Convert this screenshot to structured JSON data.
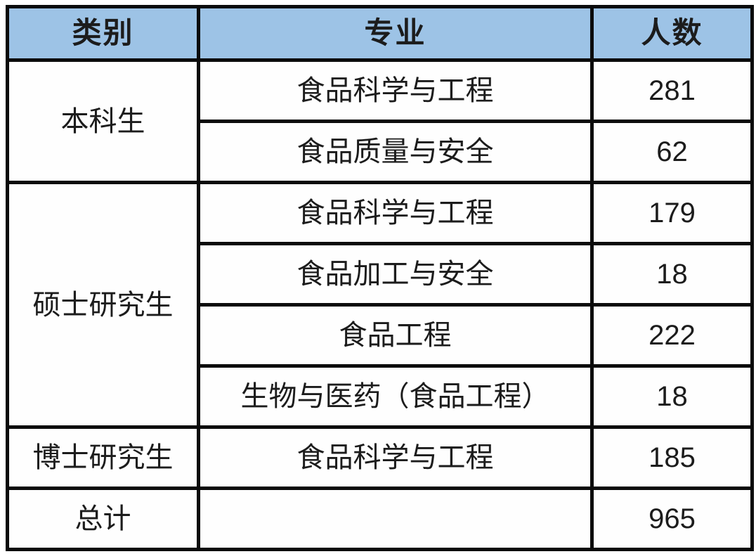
{
  "table": {
    "headers": {
      "category": "类别",
      "major": "专业",
      "count": "人数"
    },
    "groups": [
      {
        "category": "本科生",
        "rows": [
          {
            "major": "食品科学与工程",
            "count": "281"
          },
          {
            "major": "食品质量与安全",
            "count": "62"
          }
        ]
      },
      {
        "category": "硕士研究生",
        "rows": [
          {
            "major": "食品科学与工程",
            "count": "179"
          },
          {
            "major": "食品加工与安全",
            "count": "18"
          },
          {
            "major": "食品工程",
            "count": "222"
          },
          {
            "major": "生物与医药（食品工程）",
            "count": "18"
          }
        ]
      },
      {
        "category": "博士研究生",
        "rows": [
          {
            "major": "食品科学与工程",
            "count": "185"
          }
        ]
      },
      {
        "category": "总计",
        "rows": [
          {
            "major": "",
            "count": "965"
          }
        ]
      }
    ],
    "colors": {
      "header_bg": "#9DC3E6",
      "border": "#0b0b0b",
      "cell_bg": "#fefefe",
      "text": "#1c1c1c"
    }
  },
  "chart_data": {
    "type": "table",
    "columns": [
      "类别",
      "专业",
      "人数"
    ],
    "rows": [
      [
        "本科生",
        "食品科学与工程",
        281
      ],
      [
        "本科生",
        "食品质量与安全",
        62
      ],
      [
        "硕士研究生",
        "食品科学与工程",
        179
      ],
      [
        "硕士研究生",
        "食品加工与安全",
        18
      ],
      [
        "硕士研究生",
        "食品工程",
        222
      ],
      [
        "硕士研究生",
        "生物与医药（食品工程）",
        18
      ],
      [
        "博士研究生",
        "食品科学与工程",
        185
      ],
      [
        "总计",
        "",
        965
      ]
    ],
    "notes": "Merged cells: 本科生 spans 2 rows, 硕士研究生 spans 4 rows; 总计 row has empty major cell; total 965"
  }
}
